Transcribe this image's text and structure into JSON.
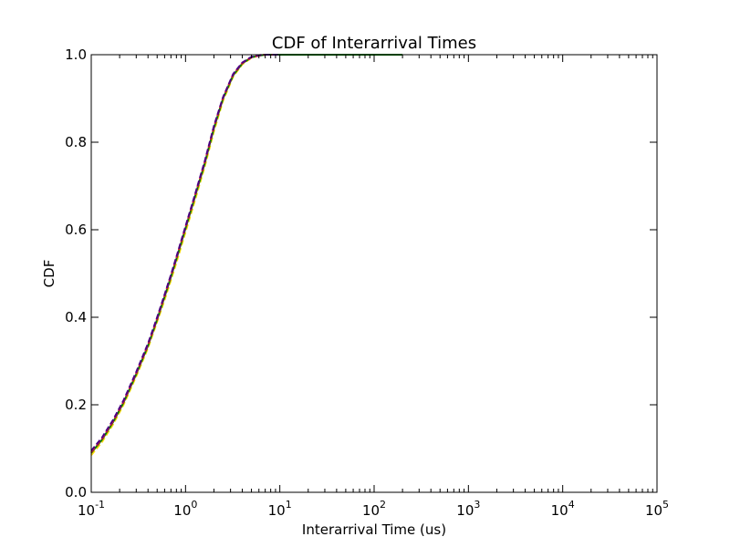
{
  "chart_data": {
    "type": "line",
    "title": "CDF of Interarrival Times",
    "xlabel": "Interarrival Time (us)",
    "ylabel": "CDF",
    "x_scale": "log",
    "xlim": [
      0.1,
      100000
    ],
    "ylim": [
      0.0,
      1.0
    ],
    "x_ticks": [
      {
        "value": 0.1,
        "base": "10",
        "exp": "-1"
      },
      {
        "value": 1,
        "base": "10",
        "exp": "0"
      },
      {
        "value": 10,
        "base": "10",
        "exp": "1"
      },
      {
        "value": 100,
        "base": "10",
        "exp": "2"
      },
      {
        "value": 1000,
        "base": "10",
        "exp": "3"
      },
      {
        "value": 10000,
        "base": "10",
        "exp": "4"
      },
      {
        "value": 100000,
        "base": "10",
        "exp": "5"
      }
    ],
    "y_ticks": [
      {
        "value": 0.0,
        "label": "0.0"
      },
      {
        "value": 0.2,
        "label": "0.2"
      },
      {
        "value": 0.4,
        "label": "0.4"
      },
      {
        "value": 0.6,
        "label": "0.6"
      },
      {
        "value": 0.8,
        "label": "0.8"
      },
      {
        "value": 1.0,
        "label": "1.0"
      }
    ],
    "grid": false,
    "series": [
      {
        "color": "#ffd700",
        "style": "dashed",
        "x": [
          0.1,
          0.13,
          0.17,
          0.22,
          0.3,
          0.4,
          0.5,
          0.6,
          0.7,
          0.8,
          1.0,
          1.25,
          1.6,
          2.0,
          2.5,
          3.2,
          4.0,
          5.0,
          6.0,
          7.0,
          8.0,
          10.0
        ],
        "y": [
          0.085,
          0.115,
          0.155,
          0.2,
          0.265,
          0.33,
          0.39,
          0.44,
          0.485,
          0.525,
          0.595,
          0.665,
          0.745,
          0.825,
          0.895,
          0.95,
          0.978,
          0.993,
          0.998,
          1.0,
          1.0,
          1.0
        ]
      },
      {
        "color": "#008000",
        "style": "solid",
        "x": [
          0.1,
          0.13,
          0.17,
          0.22,
          0.3,
          0.4,
          0.5,
          0.6,
          0.7,
          0.8,
          1.0,
          1.25,
          1.6,
          2.0,
          2.5,
          3.2,
          4.0,
          5.0,
          6.0,
          7.0,
          8.0,
          10.0,
          100.0,
          200.0
        ],
        "y": [
          0.09,
          0.12,
          0.16,
          0.205,
          0.27,
          0.335,
          0.395,
          0.447,
          0.492,
          0.533,
          0.603,
          0.673,
          0.752,
          0.832,
          0.9,
          0.953,
          0.98,
          0.994,
          0.998,
          1.0,
          1.0,
          1.0,
          1.0,
          1.0
        ]
      },
      {
        "color": "#dc143c",
        "style": "dashed",
        "x": [
          0.1,
          0.13,
          0.17,
          0.22,
          0.3,
          0.4,
          0.5,
          0.6,
          0.7,
          0.8,
          1.0,
          1.25,
          1.6,
          2.0,
          2.5,
          3.2,
          4.0,
          5.0,
          6.0,
          7.0,
          8.0,
          10.0
        ],
        "y": [
          0.092,
          0.122,
          0.162,
          0.207,
          0.272,
          0.337,
          0.397,
          0.45,
          0.495,
          0.536,
          0.606,
          0.676,
          0.755,
          0.835,
          0.902,
          0.955,
          0.981,
          0.994,
          0.998,
          1.0,
          1.0,
          1.0
        ]
      },
      {
        "color": "#4b0082",
        "style": "dashed",
        "x": [
          0.1,
          0.13,
          0.17,
          0.22,
          0.3,
          0.4,
          0.5,
          0.6,
          0.7,
          0.8,
          1.0,
          1.25,
          1.6,
          2.0,
          2.5,
          3.2,
          4.0,
          5.0,
          6.0,
          7.0,
          8.0,
          10.0
        ],
        "y": [
          0.095,
          0.125,
          0.165,
          0.21,
          0.275,
          0.34,
          0.4,
          0.452,
          0.497,
          0.538,
          0.608,
          0.678,
          0.757,
          0.837,
          0.903,
          0.956,
          0.982,
          0.995,
          0.999,
          1.0,
          1.0,
          1.0
        ]
      }
    ]
  }
}
